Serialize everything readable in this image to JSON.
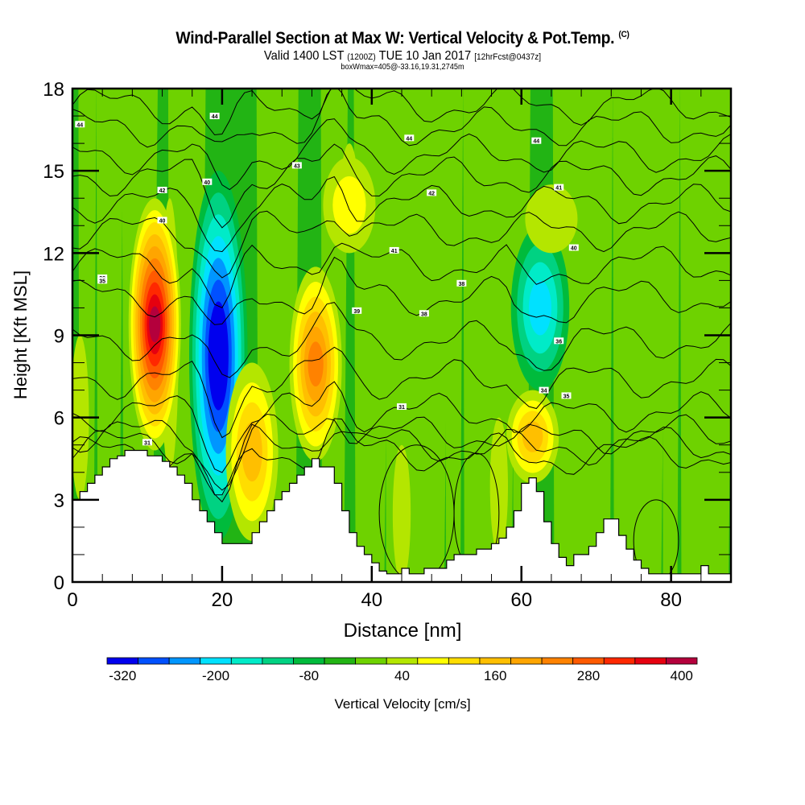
{
  "title": {
    "main": "Wind-Parallel Section at Max W: Vertical Velocity & Pot.Temp.",
    "copyright_mark": "(C)",
    "valid_prefix": "Valid 1400 LST",
    "valid_utc": "(1200Z)",
    "valid_date": "TUE 10 Jan 2017",
    "forecast": "[12hrFcst@0437z]",
    "box_info": "boxWmax=405@-33.16,19.31,2745m"
  },
  "chart_data": {
    "type": "heatmap",
    "title": "Wind-Parallel Section at Max W: Vertical Velocity & Pot.Temp.",
    "xlabel": "Distance [nm]",
    "ylabel": "Height [Kft MSL]",
    "xlim": [
      0,
      88
    ],
    "ylim": [
      0,
      18
    ],
    "x_ticks": [
      0,
      20,
      40,
      60,
      80
    ],
    "y_ticks": [
      0,
      3,
      6,
      9,
      12,
      15,
      18
    ],
    "colorbar": {
      "label": "Vertical Velocity [cm/s]",
      "tick_labels": [
        "-320",
        "-200",
        "-80",
        "40",
        "160",
        "280",
        "400"
      ],
      "levels": [
        -320,
        -280,
        -240,
        -200,
        -160,
        -120,
        -80,
        -40,
        0,
        40,
        80,
        120,
        160,
        200,
        240,
        280,
        320,
        360,
        400
      ],
      "colors": [
        "#0000ee",
        "#0050ff",
        "#0096ff",
        "#00e1ff",
        "#00ebc8",
        "#00d282",
        "#00bb3c",
        "#22b414",
        "#6ed200",
        "#b4e600",
        "#ffff00",
        "#ffdd00",
        "#ffbf00",
        "#ffa500",
        "#ff8200",
        "#ff5a00",
        "#ff2800",
        "#e6000f",
        "#b4003c"
      ]
    },
    "updraft_cores": [
      {
        "x": 11,
        "ybottom": 4.8,
        "ytop": 14,
        "peak_cms": 400
      },
      {
        "x": 24,
        "ybottom": 1.5,
        "ytop": 8,
        "peak_cms": 160
      },
      {
        "x": 32.5,
        "ybottom": 4.4,
        "ytop": 11.5,
        "peak_cms": 240
      },
      {
        "x": 37,
        "ybottom": 12,
        "ytop": 15.5,
        "peak_cms": 80
      },
      {
        "x": 61.5,
        "ybottom": 3.6,
        "ytop": 7,
        "peak_cms": 160
      },
      {
        "x": 64,
        "ybottom": 12,
        "ytop": 14.5,
        "peak_cms": 40
      }
    ],
    "downdraft_cores": [
      {
        "x": 19.5,
        "ybottom": 1.5,
        "ytop": 15,
        "peak_cms": -320
      },
      {
        "x": 62.5,
        "ybottom": 7,
        "ytop": 13,
        "peak_cms": -160
      }
    ],
    "terrain_kft": {
      "x": [
        0,
        1,
        2,
        3,
        4,
        5,
        6,
        7,
        8,
        9,
        10,
        11,
        12,
        13,
        14,
        15,
        16,
        17,
        18,
        19,
        20,
        21,
        22,
        23,
        24,
        25,
        26,
        27,
        28,
        29,
        30,
        31,
        32,
        33,
        34,
        35,
        36,
        37,
        38,
        39,
        40,
        41,
        42,
        43,
        44,
        45,
        46,
        47,
        48,
        49,
        50,
        51,
        52,
        53,
        54,
        55,
        56,
        57,
        58,
        59,
        60,
        61,
        62,
        63,
        64,
        65,
        66,
        67,
        68,
        69,
        70,
        71,
        72,
        73,
        74,
        75,
        76,
        77,
        78,
        79,
        80,
        81,
        82,
        83,
        84,
        85,
        86,
        87,
        88
      ],
      "y": [
        3.0,
        3.3,
        3.6,
        3.9,
        4.2,
        4.5,
        4.6,
        4.8,
        4.8,
        4.8,
        4.6,
        4.6,
        4.4,
        4.2,
        3.9,
        3.6,
        3.0,
        2.6,
        2.2,
        1.8,
        1.4,
        1.4,
        1.4,
        1.4,
        1.8,
        2.2,
        2.6,
        3.0,
        3.3,
        3.6,
        3.9,
        4.2,
        4.5,
        4.2,
        4.2,
        3.6,
        2.6,
        1.8,
        1.3,
        1.0,
        0.7,
        0.4,
        0.3,
        0.3,
        0.5,
        0.3,
        0.3,
        0.5,
        0.5,
        0.5,
        0.8,
        1.0,
        1.0,
        1.0,
        1.2,
        1.2,
        1.4,
        1.6,
        2.0,
        2.6,
        3.6,
        3.8,
        3.3,
        2.2,
        1.4,
        0.9,
        0.6,
        1.0,
        1.0,
        1.3,
        1.8,
        2.3,
        2.3,
        1.7,
        1.2,
        0.8,
        0.5,
        0.3,
        0.3,
        0.3,
        0.3,
        0.3,
        0.3,
        0.3,
        0.6,
        0.3,
        0.3,
        0.3,
        0.3
      ]
    },
    "potential_temperature_contour_labels": [
      "44",
      "44",
      "44",
      "44",
      "43",
      "42",
      "42",
      "41",
      "41",
      "40",
      "40",
      "40",
      "39",
      "38",
      "38",
      "38",
      "36",
      "35",
      "35",
      "34",
      "31",
      "31"
    ]
  }
}
